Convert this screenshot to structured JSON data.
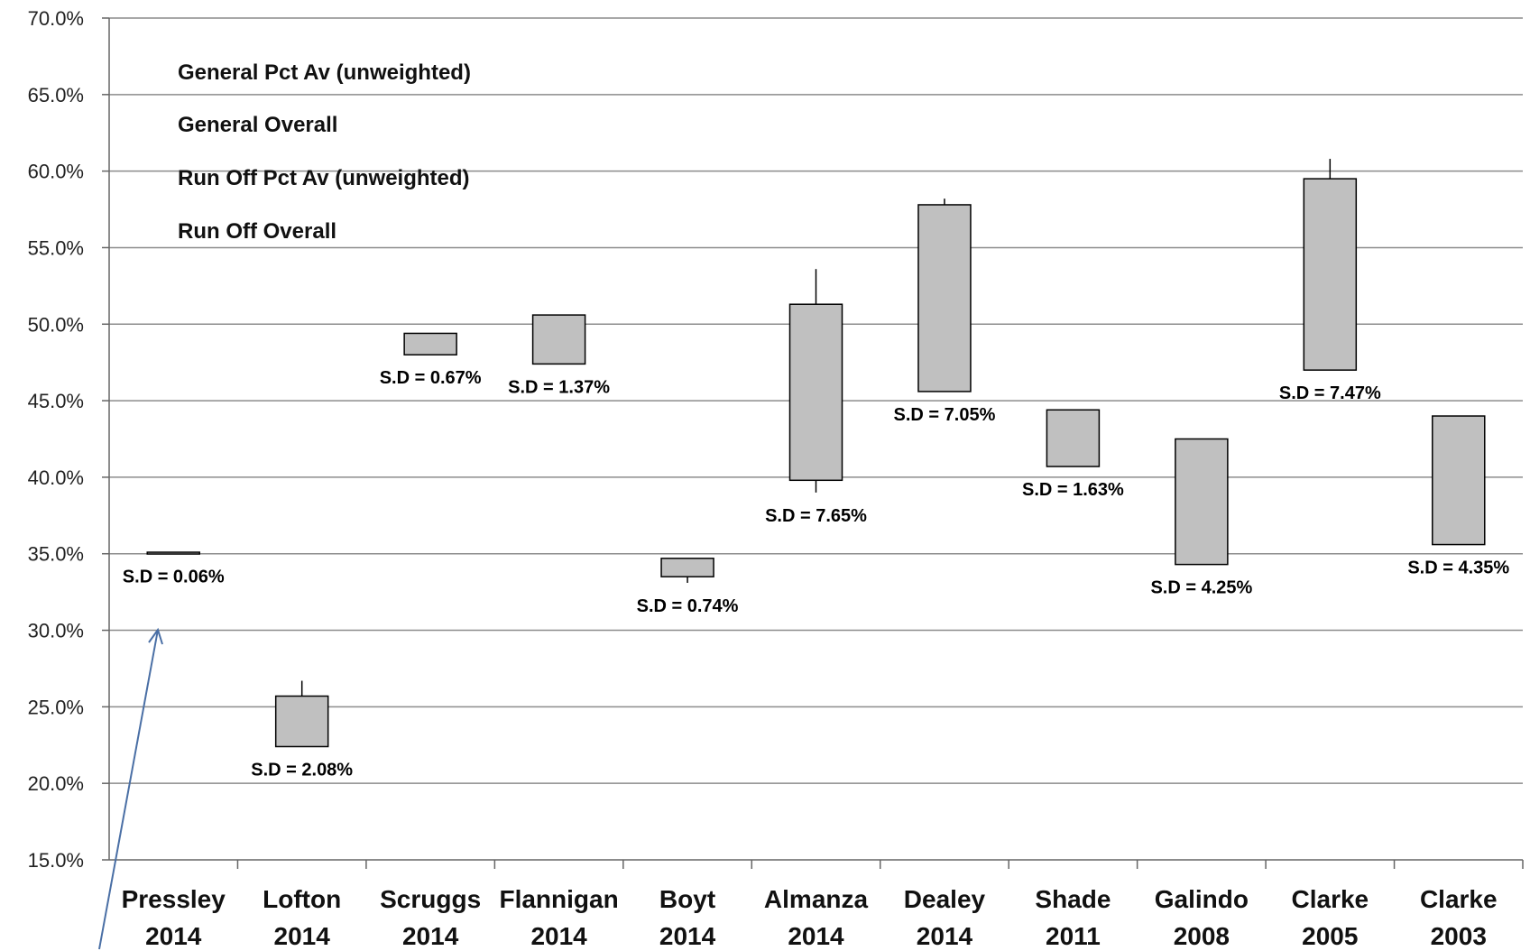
{
  "chart_data": {
    "type": "candlestick",
    "title": "",
    "xlabel": "",
    "ylabel": "",
    "ylim": [
      0.15,
      0.7
    ],
    "yticks": [
      "15.0%",
      "20.0%",
      "25.0%",
      "30.0%",
      "35.0%",
      "40.0%",
      "45.0%",
      "50.0%",
      "55.0%",
      "60.0%",
      "65.0%",
      "70.0%"
    ],
    "grid": true,
    "legend_position": "top-left",
    "legend_items": [
      "General Pct Av (unweighted)",
      "General Overall",
      "Run Off Pct Av (unweighted)",
      "Run Off Overall"
    ],
    "categories": [
      {
        "name": "Pressley",
        "year": "2014"
      },
      {
        "name": "Lofton",
        "year": "2014"
      },
      {
        "name": "Scruggs",
        "year": "2014"
      },
      {
        "name": "Flannigan",
        "year": "2014"
      },
      {
        "name": "Boyt",
        "year": "2014"
      },
      {
        "name": "Almanza",
        "year": "2014"
      },
      {
        "name": "Dealey",
        "year": "2014"
      },
      {
        "name": "Shade",
        "year": "2011"
      },
      {
        "name": "Galindo",
        "year": "2008"
      },
      {
        "name": "Clarke",
        "year": "2005"
      },
      {
        "name": "Clarke",
        "year": "2003"
      }
    ],
    "boxes": [
      {
        "low": 0.35,
        "high": 0.351,
        "wick_top": 0.351,
        "wick_bottom": 0.35,
        "sd": "S.D = 0.06%"
      },
      {
        "low": 0.224,
        "high": 0.257,
        "wick_top": 0.267,
        "wick_bottom": 0.224,
        "sd": "S.D = 2.08%"
      },
      {
        "low": 0.48,
        "high": 0.494,
        "wick_top": 0.494,
        "wick_bottom": 0.48,
        "sd": "S.D = 0.67%"
      },
      {
        "low": 0.474,
        "high": 0.506,
        "wick_top": 0.506,
        "wick_bottom": 0.474,
        "sd": "S.D = 1.37%"
      },
      {
        "low": 0.335,
        "high": 0.347,
        "wick_top": 0.347,
        "wick_bottom": 0.331,
        "sd": "S.D = 0.74%"
      },
      {
        "low": 0.398,
        "high": 0.513,
        "wick_top": 0.536,
        "wick_bottom": 0.39,
        "sd": "S.D = 7.65%"
      },
      {
        "low": 0.456,
        "high": 0.578,
        "wick_top": 0.582,
        "wick_bottom": 0.456,
        "sd": "S.D = 7.05%"
      },
      {
        "low": 0.407,
        "high": 0.444,
        "wick_top": 0.444,
        "wick_bottom": 0.407,
        "sd": "S.D = 1.63%"
      },
      {
        "low": 0.343,
        "high": 0.425,
        "wick_top": 0.425,
        "wick_bottom": 0.343,
        "sd": "S.D = 4.25%"
      },
      {
        "low": 0.47,
        "high": 0.595,
        "wick_top": 0.608,
        "wick_bottom": 0.47,
        "sd": "S.D = 7.47%"
      },
      {
        "low": 0.356,
        "high": 0.44,
        "wick_top": 0.44,
        "wick_bottom": 0.356,
        "sd": "S.D = 4.35%"
      }
    ],
    "colors": {
      "box_fill": "#c0c0c0",
      "box_stroke": "#000000",
      "grid": "#8c8c8c",
      "arrow": "#4a6fa5"
    }
  }
}
